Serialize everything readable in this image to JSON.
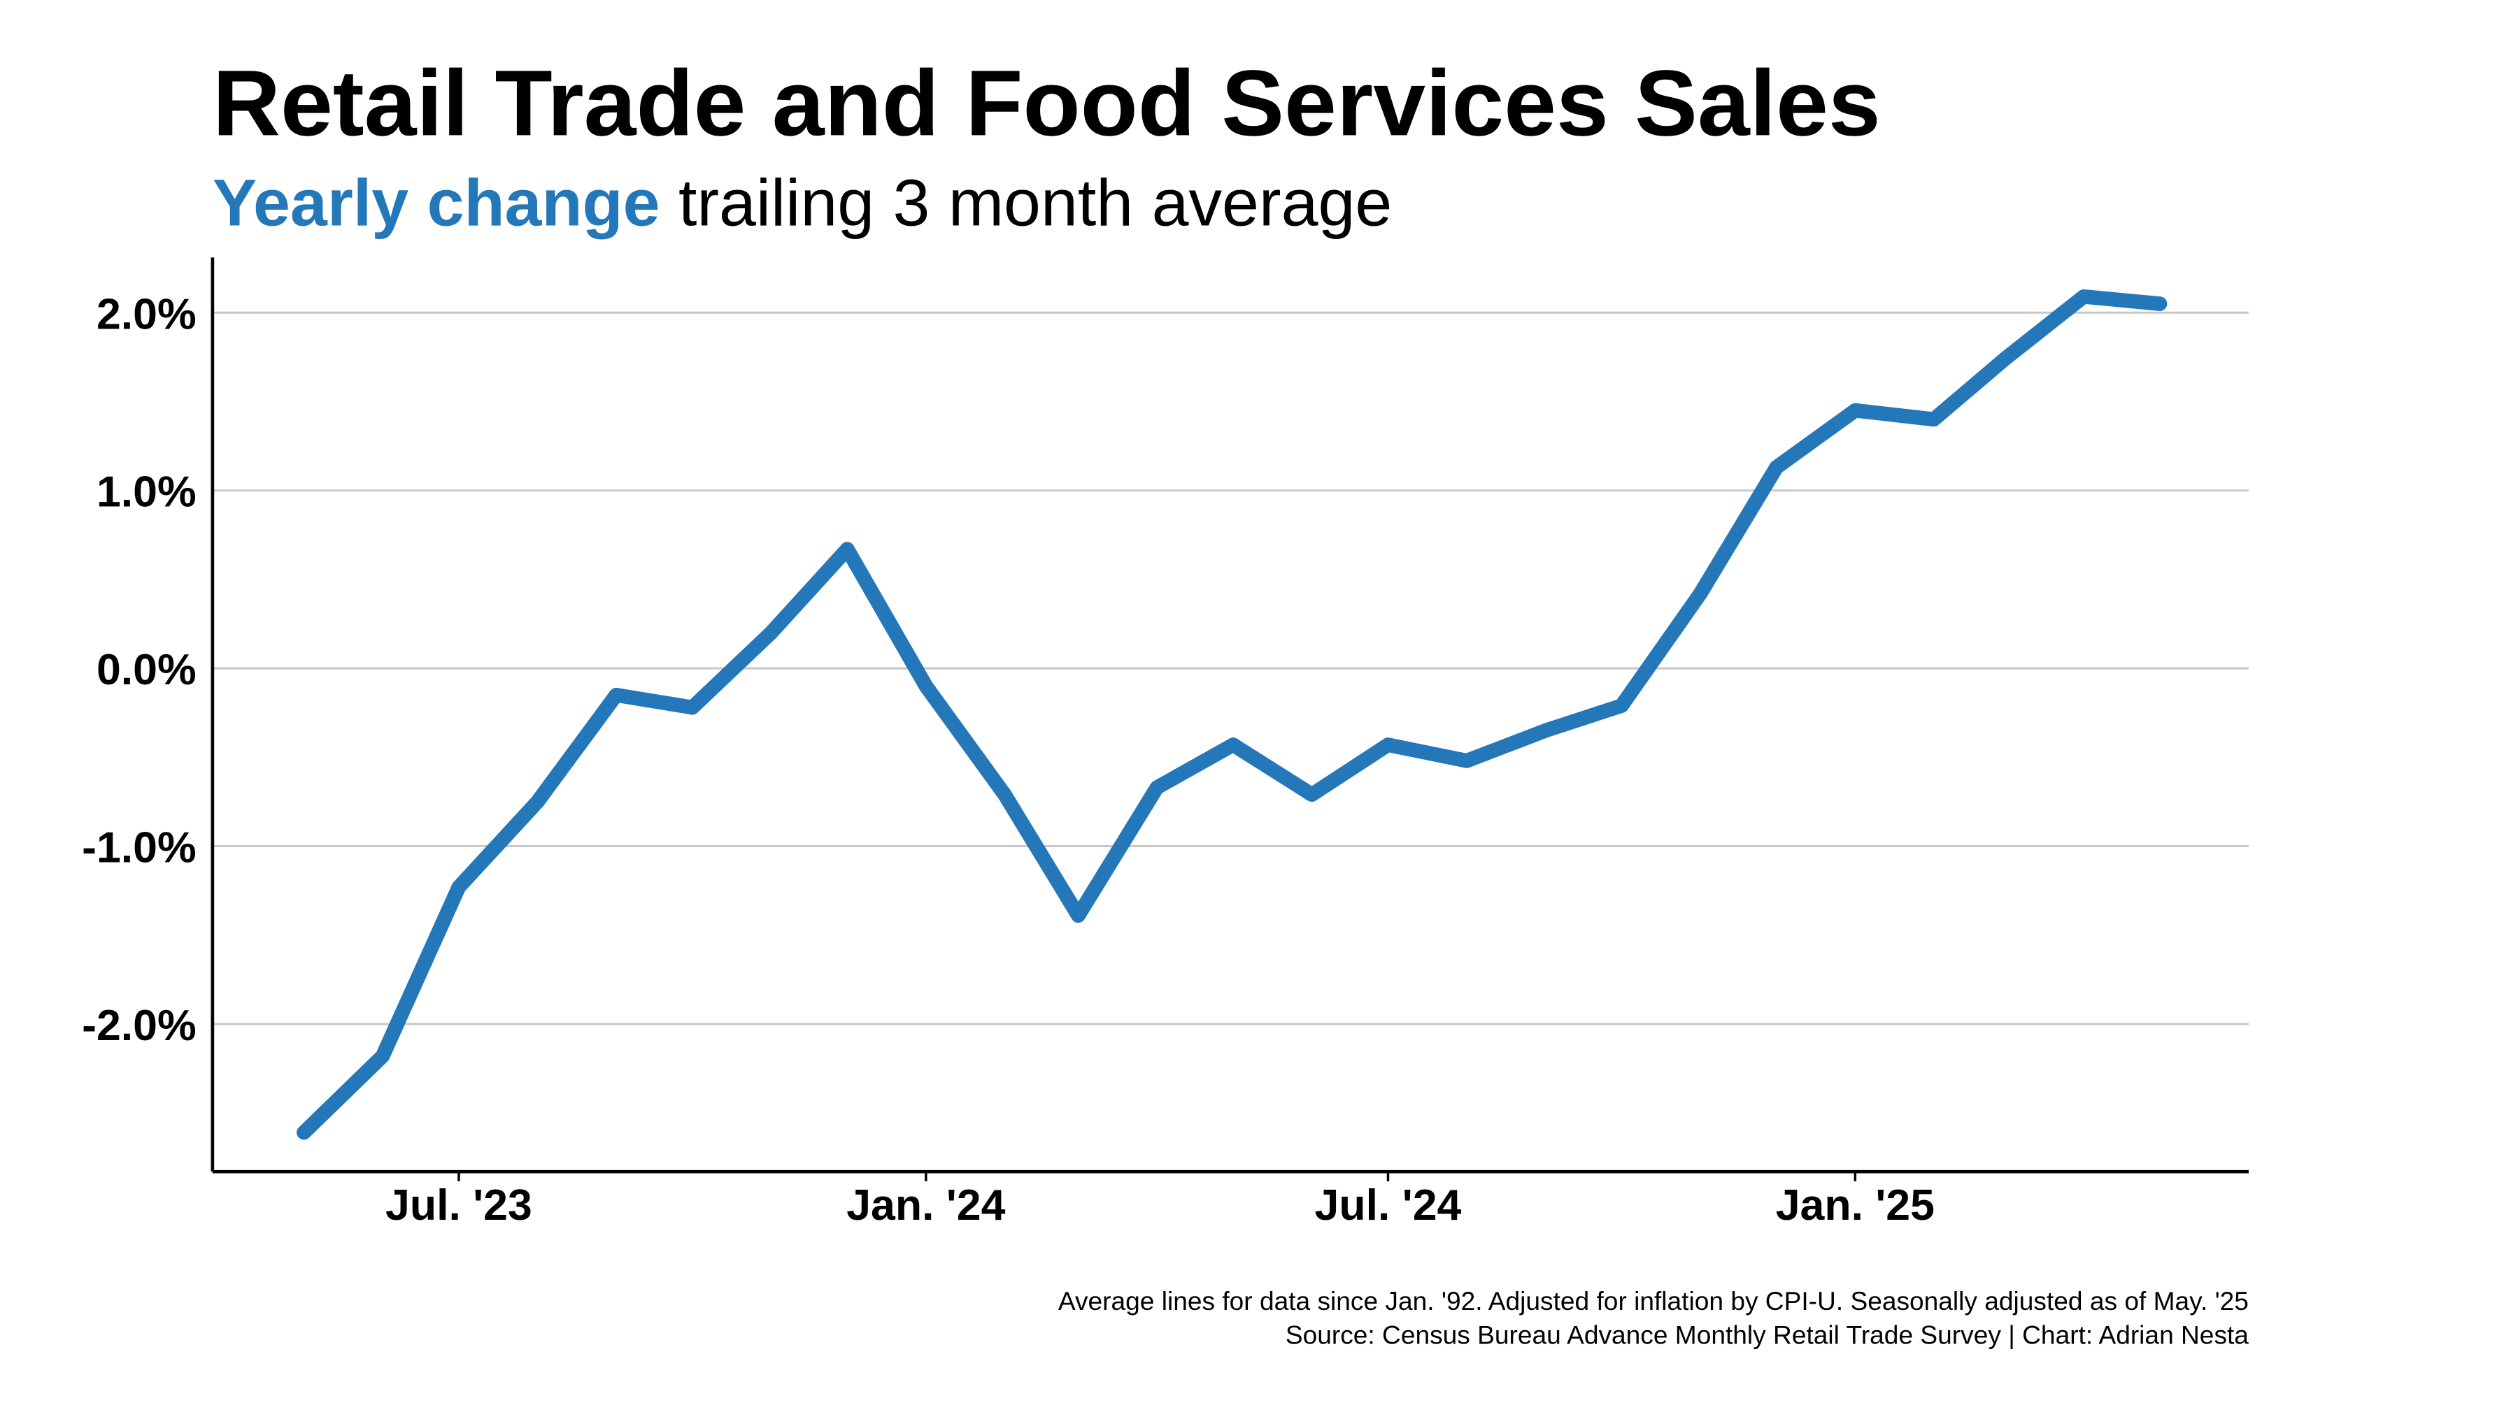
{
  "chart_data": {
    "type": "line",
    "title": "Retail Trade and Food Services Sales",
    "subtitle_highlight": "Yearly change",
    "subtitle": "trailing 3 month average",
    "notes": [
      "Average lines for data since Jan. '92. Adjusted for inflation by CPI-U. Seasonally adjusted as of May. '25",
      "Source: Census Bureau Advance Monthly Retail Trade Survey | Chart: Adrian Nesta"
    ],
    "x": [
      "2023-05",
      "2023-06",
      "2023-07",
      "2023-08",
      "2023-09",
      "2023-10",
      "2023-11",
      "2023-12",
      "2024-01",
      "2024-02",
      "2024-03",
      "2024-04",
      "2024-05",
      "2024-06",
      "2024-07",
      "2024-08",
      "2024-09",
      "2024-10",
      "2024-11",
      "2024-12",
      "2025-01",
      "2025-02",
      "2025-03",
      "2025-04",
      "2025-05"
    ],
    "series": [
      {
        "name": "Yearly change",
        "color": "#2477b8",
        "values": [
          -2.61,
          -2.18,
          -1.23,
          -0.75,
          -0.15,
          -0.22,
          0.2,
          0.67,
          -0.1,
          -0.71,
          -1.39,
          -0.67,
          -0.43,
          -0.71,
          -0.43,
          -0.52,
          -0.35,
          -0.21,
          0.42,
          1.13,
          1.45,
          1.4,
          1.74,
          2.09,
          2.05
        ]
      }
    ],
    "xlim": [
      "2023-03-26",
      "2025-06-05"
    ],
    "xticks": [
      {
        "value": "2023-07",
        "label": "Jul. '23"
      },
      {
        "value": "2024-01",
        "label": "Jan. '24"
      },
      {
        "value": "2024-07",
        "label": "Jul. '24"
      },
      {
        "value": "2025-01",
        "label": "Jan. '25"
      }
    ],
    "ylim": [
      -2.83,
      2.31
    ],
    "yticks": [
      {
        "value": -2,
        "label": "-2.0%"
      },
      {
        "value": -1,
        "label": "-1.0%"
      },
      {
        "value": 0,
        "label": "0.0%"
      },
      {
        "value": 1,
        "label": "1.0%"
      },
      {
        "value": 2,
        "label": "2.0%"
      }
    ],
    "grid": true
  }
}
